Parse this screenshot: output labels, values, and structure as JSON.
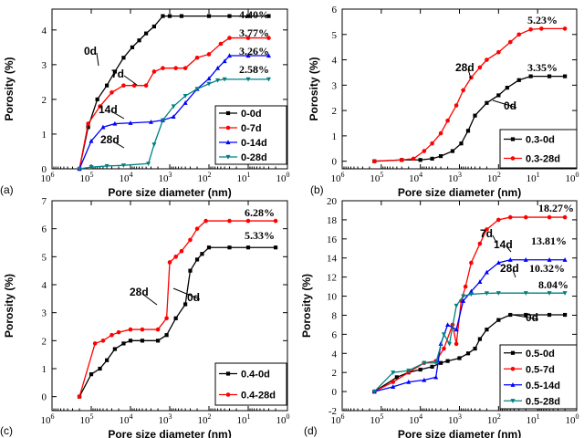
{
  "figure_labels": [
    "(a)",
    "(b)",
    "(c)",
    "(d)"
  ],
  "chart_data": [
    {
      "panel": "(a)",
      "type": "line",
      "x_scale": "log-reversed",
      "xlim": [
        1000000,
        1
      ],
      "ylim": [
        0,
        4.6
      ],
      "yticks": [
        0,
        1,
        2,
        3,
        4
      ],
      "xlabel": "Pore size diameter (nm)",
      "ylabel": "Porosity (%)",
      "legend_position": "bottom-right",
      "series": [
        {
          "name": "0-0d",
          "color": "#000000",
          "marker": "square",
          "points": [
            [
              200000,
              0
            ],
            [
              120000,
              1.2
            ],
            [
              70000,
              2.0
            ],
            [
              40000,
              2.4
            ],
            [
              25000,
              2.8
            ],
            [
              15000,
              3.2
            ],
            [
              9000,
              3.5
            ],
            [
              6000,
              3.7
            ],
            [
              4000,
              3.9
            ],
            [
              2500,
              4.1
            ],
            [
              1500,
              4.4
            ],
            [
              1000,
              4.4
            ],
            [
              500,
              4.4
            ],
            [
              100,
              4.4
            ],
            [
              30,
              4.4
            ],
            [
              10,
              4.4
            ],
            [
              3,
              4.4
            ]
          ],
          "end_label": "4.40%",
          "curve_label": "0d"
        },
        {
          "name": "0-7d",
          "color": "#ff0000",
          "marker": "circle",
          "points": [
            [
              200000,
              0
            ],
            [
              120000,
              1.3
            ],
            [
              60000,
              1.8
            ],
            [
              30000,
              2.2
            ],
            [
              15000,
              2.4
            ],
            [
              8000,
              2.4
            ],
            [
              4000,
              2.4
            ],
            [
              2500,
              2.8
            ],
            [
              1500,
              2.9
            ],
            [
              700,
              2.9
            ],
            [
              400,
              2.9
            ],
            [
              200,
              3.2
            ],
            [
              100,
              3.3
            ],
            [
              50,
              3.6
            ],
            [
              30,
              3.77
            ],
            [
              10,
              3.77
            ],
            [
              3,
              3.77
            ]
          ],
          "end_label": "3.77%",
          "curve_label": "7d"
        },
        {
          "name": "0-14d",
          "color": "#0000ff",
          "marker": "triangle",
          "points": [
            [
              200000,
              0
            ],
            [
              100000,
              0.8
            ],
            [
              50000,
              1.2
            ],
            [
              25000,
              1.3
            ],
            [
              10000,
              1.32
            ],
            [
              3000,
              1.35
            ],
            [
              1500,
              1.4
            ],
            [
              800,
              1.5
            ],
            [
              400,
              1.9
            ],
            [
              200,
              2.3
            ],
            [
              100,
              2.6
            ],
            [
              60,
              2.9
            ],
            [
              40,
              3.1
            ],
            [
              30,
              3.26
            ],
            [
              10,
              3.26
            ],
            [
              3,
              3.26
            ]
          ],
          "end_label": "3.26%",
          "curve_label": "14d"
        },
        {
          "name": "0-28d",
          "color": "#008080",
          "marker": "triangle-down",
          "points": [
            [
              200000,
              0
            ],
            [
              100000,
              0.05
            ],
            [
              40000,
              0.08
            ],
            [
              15000,
              0.1
            ],
            [
              3500,
              0.15
            ],
            [
              2500,
              0.7
            ],
            [
              1500,
              1.4
            ],
            [
              800,
              1.8
            ],
            [
              400,
              2.1
            ],
            [
              200,
              2.3
            ],
            [
              100,
              2.45
            ],
            [
              60,
              2.55
            ],
            [
              40,
              2.58
            ],
            [
              10,
              2.58
            ],
            [
              3,
              2.58
            ]
          ],
          "end_label": "2.58%",
          "curve_label": "28d"
        }
      ]
    },
    {
      "panel": "(b)",
      "type": "line",
      "x_scale": "log-reversed",
      "xlim": [
        1000000,
        1
      ],
      "ylim": [
        -0.3,
        6
      ],
      "yticks": [
        0,
        1,
        2,
        3,
        4,
        5,
        6
      ],
      "xlabel": "Pore size diameter (nm)",
      "ylabel": "Porosity (%)",
      "legend_position": "bottom-right",
      "series": [
        {
          "name": "0.3-0d",
          "color": "#000000",
          "marker": "square",
          "points": [
            [
              150000,
              0
            ],
            [
              30000,
              0.05
            ],
            [
              10000,
              0.05
            ],
            [
              5000,
              0.1
            ],
            [
              3000,
              0.2
            ],
            [
              1500,
              0.4
            ],
            [
              900,
              0.7
            ],
            [
              600,
              1.2
            ],
            [
              400,
              1.8
            ],
            [
              200,
              2.3
            ],
            [
              100,
              2.6
            ],
            [
              60,
              2.9
            ],
            [
              30,
              3.2
            ],
            [
              15,
              3.35
            ],
            [
              5,
              3.35
            ],
            [
              2,
              3.35
            ]
          ],
          "end_label": "3.35%",
          "curve_label": "0d"
        },
        {
          "name": "0.3-28d",
          "color": "#ff0000",
          "marker": "circle",
          "points": [
            [
              150000,
              0
            ],
            [
              30000,
              0.05
            ],
            [
              15000,
              0.1
            ],
            [
              8000,
              0.4
            ],
            [
              5000,
              0.7
            ],
            [
              3000,
              1.1
            ],
            [
              2000,
              1.6
            ],
            [
              1200,
              2.2
            ],
            [
              800,
              2.8
            ],
            [
              500,
              3.3
            ],
            [
              300,
              3.7
            ],
            [
              200,
              4.0
            ],
            [
              100,
              4.3
            ],
            [
              50,
              4.7
            ],
            [
              30,
              5.0
            ],
            [
              15,
              5.2
            ],
            [
              8,
              5.23
            ],
            [
              2,
              5.23
            ]
          ],
          "end_label": "5.23%",
          "curve_label": "28d"
        }
      ]
    },
    {
      "panel": "(c)",
      "type": "line",
      "x_scale": "log-reversed",
      "xlim": [
        1000000,
        1
      ],
      "ylim": [
        -0.5,
        7
      ],
      "yticks": [
        0,
        1,
        2,
        3,
        4,
        5,
        6,
        7
      ],
      "xlabel": "Pore size diameter (nm)",
      "ylabel": "Porosity (%)",
      "legend_position": "bottom-right",
      "series": [
        {
          "name": "0.4-0d",
          "color": "#000000",
          "marker": "square",
          "points": [
            [
              200000,
              0
            ],
            [
              100000,
              0.8
            ],
            [
              60000,
              1.0
            ],
            [
              40000,
              1.3
            ],
            [
              25000,
              1.7
            ],
            [
              15000,
              1.9
            ],
            [
              10000,
              2.0
            ],
            [
              5000,
              2.0
            ],
            [
              2000,
              2.0
            ],
            [
              1200,
              2.2
            ],
            [
              700,
              2.8
            ],
            [
              400,
              3.3
            ],
            [
              300,
              4.5
            ],
            [
              200,
              4.9
            ],
            [
              150,
              5.1
            ],
            [
              100,
              5.33
            ],
            [
              30,
              5.33
            ],
            [
              10,
              5.33
            ],
            [
              2,
              5.33
            ]
          ],
          "end_label": "5.33%",
          "curve_label": "0d"
        },
        {
          "name": "0.4-28d",
          "color": "#ff0000",
          "marker": "circle",
          "points": [
            [
              200000,
              0
            ],
            [
              80000,
              1.9
            ],
            [
              50000,
              2.0
            ],
            [
              30000,
              2.2
            ],
            [
              20000,
              2.3
            ],
            [
              10000,
              2.4
            ],
            [
              5000,
              2.4
            ],
            [
              2000,
              2.4
            ],
            [
              1200,
              2.8
            ],
            [
              1000,
              4.8
            ],
            [
              700,
              5.0
            ],
            [
              500,
              5.2
            ],
            [
              300,
              5.6
            ],
            [
              200,
              6.0
            ],
            [
              120,
              6.28
            ],
            [
              30,
              6.28
            ],
            [
              10,
              6.28
            ],
            [
              2,
              6.28
            ]
          ],
          "end_label": "6.28%",
          "curve_label": "28d"
        }
      ]
    },
    {
      "panel": "(d)",
      "type": "line",
      "x_scale": "log-reversed",
      "xlim": [
        1000000,
        1
      ],
      "ylim": [
        -2,
        20
      ],
      "yticks": [
        -2,
        0,
        2,
        4,
        6,
        8,
        10,
        12,
        14,
        16,
        18,
        20
      ],
      "xlabel": "Pore size diameter (nm)",
      "ylabel": "Porosity (%)",
      "legend_position": "bottom-right",
      "series": [
        {
          "name": "0.5-0d",
          "color": "#000000",
          "marker": "square",
          "points": [
            [
              150000,
              0
            ],
            [
              40000,
              1.5
            ],
            [
              20000,
              2.0
            ],
            [
              10000,
              2.3
            ],
            [
              5000,
              2.6
            ],
            [
              3000,
              3.0
            ],
            [
              2000,
              3.2
            ],
            [
              1000,
              3.5
            ],
            [
              600,
              4.0
            ],
            [
              400,
              4.5
            ],
            [
              300,
              5.5
            ],
            [
              200,
              6.5
            ],
            [
              100,
              7.5
            ],
            [
              50,
              8.04
            ],
            [
              20,
              8.04
            ],
            [
              5,
              8.04
            ],
            [
              2,
              8.04
            ]
          ],
          "end_label": "8.04%",
          "curve_label": "0d"
        },
        {
          "name": "0.5-7d",
          "color": "#ff0000",
          "marker": "circle",
          "points": [
            [
              150000,
              0
            ],
            [
              50000,
              1.0
            ],
            [
              20000,
              2.0
            ],
            [
              8000,
              3.0
            ],
            [
              4000,
              3.2
            ],
            [
              2500,
              4.5
            ],
            [
              1500,
              7.0
            ],
            [
              1200,
              5.0
            ],
            [
              900,
              9.5
            ],
            [
              700,
              11.0
            ],
            [
              500,
              13.5
            ],
            [
              300,
              15.5
            ],
            [
              200,
              17.0
            ],
            [
              100,
              18.0
            ],
            [
              50,
              18.27
            ],
            [
              20,
              18.27
            ],
            [
              5,
              18.27
            ],
            [
              2,
              18.27
            ]
          ],
          "end_label": "18.27%",
          "curve_label": "7d"
        },
        {
          "name": "0.5-14d",
          "color": "#0000ff",
          "marker": "triangle",
          "points": [
            [
              150000,
              0
            ],
            [
              50000,
              0.5
            ],
            [
              20000,
              1.0
            ],
            [
              8000,
              1.2
            ],
            [
              4000,
              1.5
            ],
            [
              3000,
              5.0
            ],
            [
              2000,
              7.0
            ],
            [
              1200,
              6.5
            ],
            [
              800,
              9.5
            ],
            [
              500,
              10.5
            ],
            [
              300,
              11.5
            ],
            [
              200,
              12.5
            ],
            [
              100,
              13.5
            ],
            [
              50,
              13.81
            ],
            [
              20,
              13.81
            ],
            [
              5,
              13.81
            ],
            [
              2,
              13.81
            ]
          ],
          "end_label": "13.81%",
          "curve_label": "14d"
        },
        {
          "name": "0.5-28d",
          "color": "#008080",
          "marker": "triangle-down",
          "points": [
            [
              150000,
              0
            ],
            [
              50000,
              2.0
            ],
            [
              20000,
              2.2
            ],
            [
              8000,
              3.0
            ],
            [
              4000,
              3.0
            ],
            [
              2500,
              6.0
            ],
            [
              1800,
              5.0
            ],
            [
              1200,
              9.0
            ],
            [
              800,
              10.0
            ],
            [
              500,
              10.2
            ],
            [
              200,
              10.3
            ],
            [
              100,
              10.32
            ],
            [
              20,
              10.32
            ],
            [
              5,
              10.32
            ],
            [
              2,
              10.32
            ]
          ],
          "end_label": "10.32%",
          "curve_label": "28d"
        }
      ]
    }
  ]
}
